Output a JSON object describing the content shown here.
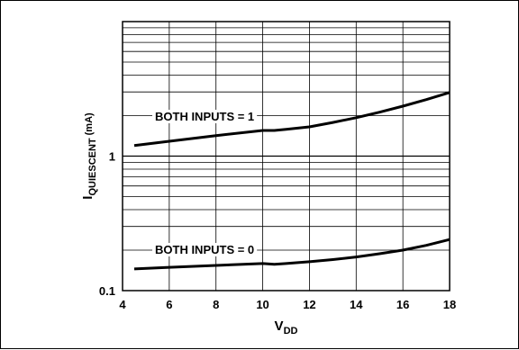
{
  "chart_data": {
    "type": "line",
    "title": "",
    "xlabel": "V",
    "xlabel_sub": "DD",
    "ylabel": "I",
    "ylabel_sub": "QUIESCENT",
    "ylabel_unit": "(mA)",
    "xlim": [
      4,
      18
    ],
    "ylim": [
      0.1,
      10
    ],
    "yscale": "log",
    "grid": true,
    "x_ticks": [
      "4",
      "6",
      "8",
      "10",
      "12",
      "14",
      "16",
      "18"
    ],
    "y_ticks": [
      "0.1",
      "1"
    ],
    "series": [
      {
        "name": "BOTH INPUTS = 1",
        "x": [
          4.5,
          6,
          8,
          10,
          10.5,
          11,
          12,
          13,
          14,
          15,
          16,
          17,
          18
        ],
        "y": [
          1.2,
          1.29,
          1.42,
          1.55,
          1.55,
          1.58,
          1.65,
          1.78,
          1.93,
          2.12,
          2.35,
          2.63,
          2.97
        ]
      },
      {
        "name": "BOTH INPUTS = 0",
        "x": [
          4.5,
          6,
          8,
          10,
          10.5,
          11,
          12,
          13,
          14,
          15,
          16,
          17,
          18
        ],
        "y": [
          0.145,
          0.149,
          0.154,
          0.159,
          0.157,
          0.159,
          0.164,
          0.17,
          0.178,
          0.188,
          0.2,
          0.217,
          0.24
        ]
      }
    ]
  }
}
